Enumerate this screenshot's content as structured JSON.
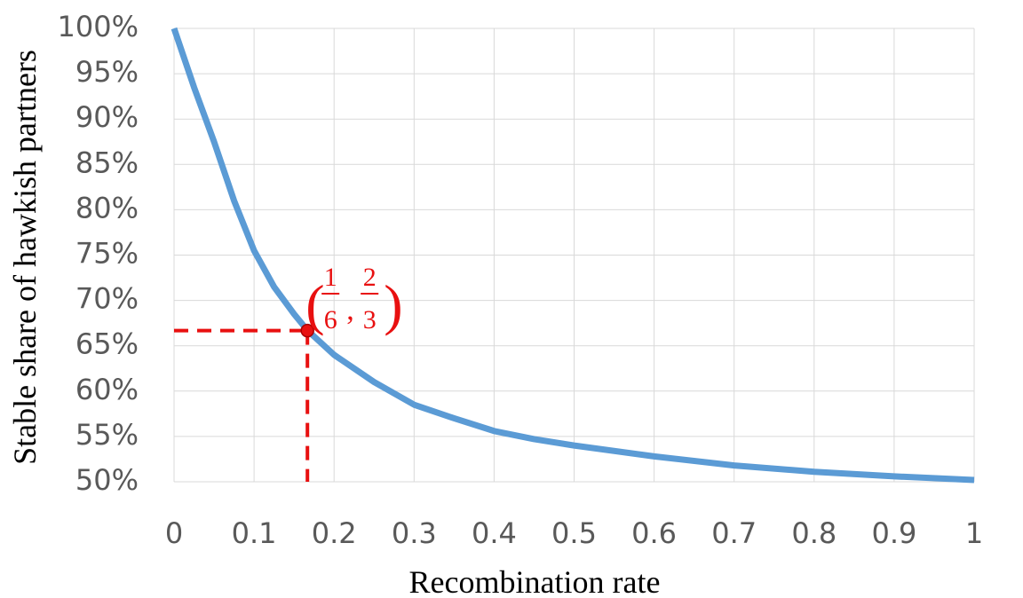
{
  "chart_data": {
    "type": "line",
    "x_label": "Recombination rate",
    "y_label": "Stable share of hawkish partners",
    "x": [
      0,
      0.025,
      0.05,
      0.075,
      0.1,
      0.125,
      0.15,
      0.1667,
      0.2,
      0.25,
      0.3,
      0.35,
      0.4,
      0.45,
      0.5,
      0.6,
      0.7,
      0.8,
      0.9,
      1
    ],
    "series": [
      {
        "color": "#5b9bd5",
        "values": [
          100,
          93.5,
          87.5,
          81,
          75.5,
          71.5,
          68.5,
          66.7,
          64,
          61,
          58.5,
          57,
          55.6,
          54.7,
          54,
          52.8,
          51.8,
          51.1,
          50.6,
          50.2
        ]
      }
    ],
    "xlim": [
      0,
      1
    ],
    "xticks": [
      0,
      0.1,
      0.2,
      0.3,
      0.4,
      0.5,
      0.6,
      0.7,
      0.8,
      0.9,
      1
    ],
    "ylim": [
      50,
      100
    ],
    "yticks": [
      {
        "value": 50,
        "label": "50%"
      },
      {
        "value": 55,
        "label": "55%"
      },
      {
        "value": 60,
        "label": "60%"
      },
      {
        "value": 65,
        "label": "65%"
      },
      {
        "value": 70,
        "label": "70%"
      },
      {
        "value": 75,
        "label": "75%"
      },
      {
        "value": 80,
        "label": "80%"
      },
      {
        "value": 85,
        "label": "85%"
      },
      {
        "value": 90,
        "label": "90%"
      },
      {
        "value": 95,
        "label": "95%"
      },
      {
        "value": 100,
        "label": "100%"
      }
    ],
    "grid": true,
    "highlight": {
      "x": 0.1667,
      "y": 66.67,
      "color": "#e81010",
      "label": {
        "x": {
          "numerator": "1",
          "denominator": "6"
        },
        "y": {
          "numerator": "2",
          "denominator": "3"
        }
      }
    }
  }
}
